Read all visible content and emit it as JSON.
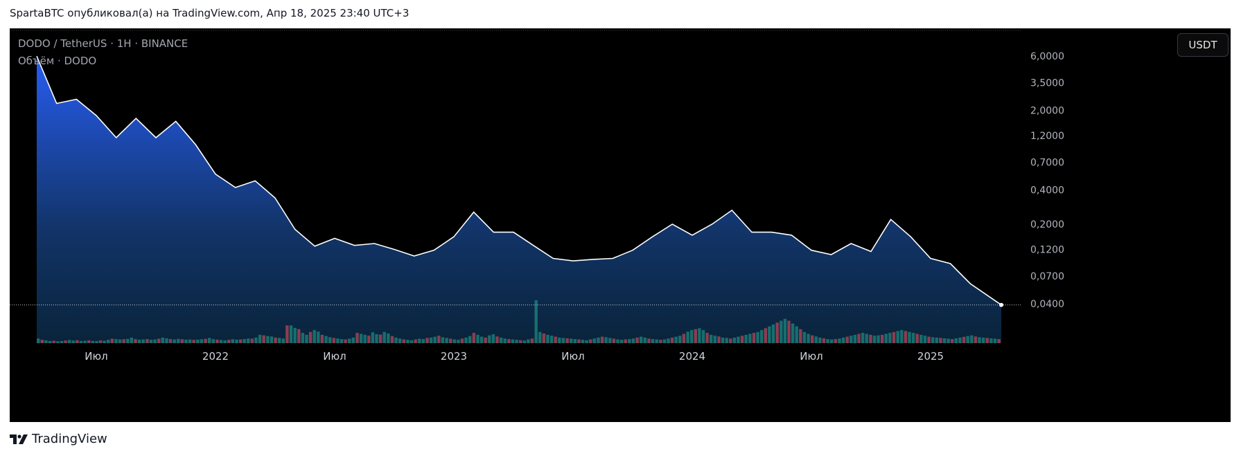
{
  "header": {
    "publish_line": "SpartaBTC опубликовал(а) на TradingView.com, Апр 18, 2025 23:40 UTC+3"
  },
  "legend": {
    "symbol_line": "DODO / TetherUS · 1H · BINANCE",
    "volume_line": "Объём · DODO"
  },
  "currency_button": "USDT",
  "footer": {
    "brand": "TradingView"
  },
  "colors": {
    "background": "#000000",
    "line": "#ffffff",
    "area_top": "#2962ff",
    "area_bottom": "#0b2a45",
    "volume_up": "#22ab94",
    "volume_down": "#f7525f"
  },
  "chart_data": {
    "type": "area",
    "scale": "log",
    "series": [
      {
        "points": [
          [
            "2021-04",
            6.0
          ],
          [
            "2021-05",
            2.3
          ],
          [
            "2021-06",
            2.5
          ],
          [
            "2021-07",
            1.8
          ],
          [
            "2021-08",
            1.15
          ],
          [
            "2021-09",
            1.7
          ],
          [
            "2021-10",
            1.15
          ],
          [
            "2021-11",
            1.6
          ],
          [
            "2021-12",
            1.0
          ],
          [
            "2022-01",
            0.55
          ],
          [
            "2022-02",
            0.42
          ],
          [
            "2022-03",
            0.48
          ],
          [
            "2022-04",
            0.34
          ],
          [
            "2022-05",
            0.18
          ],
          [
            "2022-06",
            0.128
          ],
          [
            "2022-07",
            0.15
          ],
          [
            "2022-08",
            0.13
          ],
          [
            "2022-09",
            0.135
          ],
          [
            "2022-10",
            0.12
          ],
          [
            "2022-11",
            0.105
          ],
          [
            "2022-12",
            0.118
          ],
          [
            "2023-01",
            0.155
          ],
          [
            "2023-02",
            0.255
          ],
          [
            "2023-03",
            0.17
          ],
          [
            "2023-04",
            0.17
          ],
          [
            "2023-05",
            0.13
          ],
          [
            "2023-06",
            0.1
          ],
          [
            "2023-07",
            0.095
          ],
          [
            "2023-08",
            0.098
          ],
          [
            "2023-09",
            0.1
          ],
          [
            "2023-10",
            0.118
          ],
          [
            "2023-11",
            0.155
          ],
          [
            "2023-12",
            0.2
          ],
          [
            "2024-01",
            0.16
          ],
          [
            "2024-02",
            0.2
          ],
          [
            "2024-03",
            0.265
          ],
          [
            "2024-04",
            0.17
          ],
          [
            "2024-05",
            0.17
          ],
          [
            "2024-06",
            0.16
          ],
          [
            "2024-07",
            0.118
          ],
          [
            "2024-08",
            0.108
          ],
          [
            "2024-09",
            0.135
          ],
          [
            "2024-10",
            0.115
          ],
          [
            "2024-11",
            0.22
          ],
          [
            "2024-12",
            0.155
          ],
          [
            "2025-01",
            0.1
          ],
          [
            "2025-02",
            0.09
          ],
          [
            "2025-03",
            0.06
          ],
          [
            "2025-04",
            0.039
          ]
        ],
        "last_value": 0.039
      }
    ],
    "volume_series": {
      "name": "Объём · DODO",
      "values": [
        0.25,
        0.18,
        0.15,
        0.12,
        0.13,
        0.1,
        0.11,
        0.14,
        0.17,
        0.14,
        0.16,
        0.12,
        0.13,
        0.15,
        0.12,
        0.11,
        0.15,
        0.13,
        0.18,
        0.24,
        0.22,
        0.2,
        0.21,
        0.23,
        0.3,
        0.22,
        0.19,
        0.2,
        0.22,
        0.18,
        0.2,
        0.24,
        0.3,
        0.26,
        0.22,
        0.2,
        0.23,
        0.21,
        0.19,
        0.2,
        0.18,
        0.19,
        0.21,
        0.23,
        0.28,
        0.22,
        0.19,
        0.17,
        0.15,
        0.18,
        0.21,
        0.19,
        0.2,
        0.22,
        0.25,
        0.24,
        0.3,
        0.45,
        0.42,
        0.38,
        0.36,
        0.3,
        0.28,
        0.25,
        0.95,
        0.95,
        0.82,
        0.75,
        0.55,
        0.45,
        0.6,
        0.7,
        0.62,
        0.45,
        0.38,
        0.32,
        0.28,
        0.25,
        0.22,
        0.2,
        0.24,
        0.3,
        0.55,
        0.5,
        0.45,
        0.4,
        0.58,
        0.48,
        0.46,
        0.6,
        0.52,
        0.38,
        0.3,
        0.25,
        0.2,
        0.18,
        0.15,
        0.2,
        0.24,
        0.22,
        0.28,
        0.3,
        0.35,
        0.4,
        0.32,
        0.28,
        0.24,
        0.2,
        0.18,
        0.25,
        0.3,
        0.38,
        0.55,
        0.45,
        0.35,
        0.3,
        0.42,
        0.48,
        0.36,
        0.3,
        0.25,
        0.22,
        0.2,
        0.18,
        0.16,
        0.14,
        0.2,
        0.25,
        2.3,
        0.6,
        0.52,
        0.45,
        0.4,
        0.35,
        0.3,
        0.28,
        0.26,
        0.24,
        0.22,
        0.2,
        0.18,
        0.16,
        0.2,
        0.25,
        0.3,
        0.35,
        0.32,
        0.28,
        0.24,
        0.2,
        0.18,
        0.2,
        0.22,
        0.25,
        0.3,
        0.35,
        0.3,
        0.25,
        0.22,
        0.2,
        0.18,
        0.2,
        0.25,
        0.3,
        0.35,
        0.4,
        0.5,
        0.62,
        0.7,
        0.75,
        0.8,
        0.7,
        0.55,
        0.45,
        0.4,
        0.36,
        0.3,
        0.28,
        0.25,
        0.3,
        0.35,
        0.4,
        0.45,
        0.5,
        0.55,
        0.6,
        0.7,
        0.8,
        0.9,
        1.0,
        1.1,
        1.2,
        1.3,
        1.2,
        1.05,
        0.9,
        0.75,
        0.6,
        0.5,
        0.42,
        0.36,
        0.3,
        0.26,
        0.22,
        0.2,
        0.22,
        0.25,
        0.3,
        0.35,
        0.4,
        0.45,
        0.5,
        0.55,
        0.5,
        0.45,
        0.4,
        0.42,
        0.45,
        0.5,
        0.55,
        0.6,
        0.65,
        0.7,
        0.65,
        0.6,
        0.55,
        0.5,
        0.45,
        0.4,
        0.35,
        0.32,
        0.3,
        0.28,
        0.26,
        0.24,
        0.22,
        0.26,
        0.3,
        0.34,
        0.38,
        0.42,
        0.36,
        0.32,
        0.3,
        0.28,
        0.26,
        0.24,
        0.22
      ]
    },
    "y_ticks": [
      "6,0000",
      "3,5000",
      "2,0000",
      "1,2000",
      "0,7000",
      "0,4000",
      "0,2000",
      "0,1200",
      "0,0700",
      "0,0400"
    ],
    "x_ticks": [
      "Июл",
      "2022",
      "Июл",
      "2023",
      "Июл",
      "2024",
      "Июл",
      "2025"
    ],
    "ylim": [
      0.0315,
      6.0
    ],
    "grid": false
  }
}
